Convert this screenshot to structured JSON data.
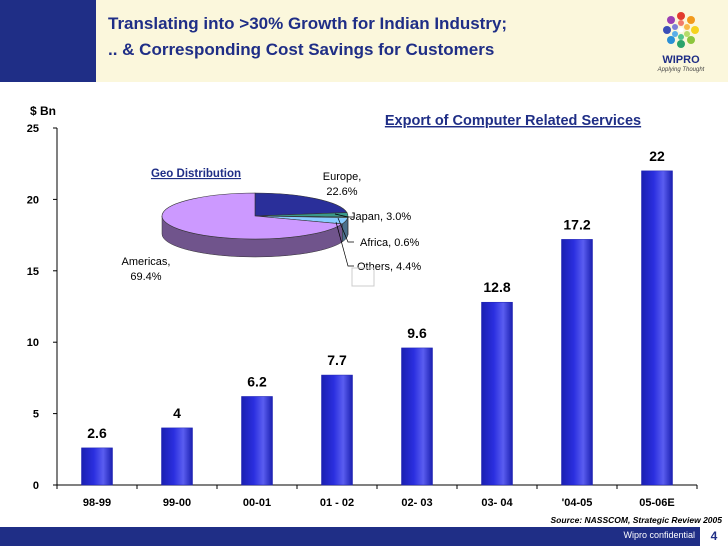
{
  "slide": {
    "title_line1": "Translating into >30% Growth for Indian Industry;",
    "title_line2": ".. & Corresponding Cost Savings for Customers",
    "logo_text": "WIPRO",
    "logo_tagline": "Applying Thought",
    "source": "Source: NASSCOM, Strategic Review 2005",
    "footer_label": "Wipro confidential",
    "page_number": "4"
  },
  "colors": {
    "brand_blue": "#1f2e86",
    "bar_blue": "#2b2fe0",
    "header_bg": "#fbf7dc",
    "pie_europe": "#2a2f9a",
    "pie_japan": "#3a9a8a",
    "pie_africa": "#ccffee",
    "pie_others": "#88ccff",
    "pie_americas": "#cc99ff"
  },
  "chart_data": [
    {
      "type": "bar",
      "title": "Export of Computer Related Services",
      "ylabel": "$ Bn",
      "xlabel": "",
      "categories": [
        "98-99",
        "99-00",
        "00-01",
        "01 - 02",
        "02- 03",
        "03- 04",
        "'04-05",
        "05-06E"
      ],
      "values": [
        2.6,
        4,
        6.2,
        7.7,
        9.6,
        12.8,
        17.2,
        22
      ],
      "value_labels": [
        "2.6",
        "4",
        "6.2",
        "7.7",
        "9.6",
        "12.8",
        "17.2",
        "22"
      ],
      "ylim": [
        0,
        25
      ],
      "yticks": [
        0,
        5,
        10,
        15,
        20,
        25
      ],
      "grid": false
    },
    {
      "type": "pie",
      "title": "Geo Distribution",
      "slices": [
        {
          "name": "Europe",
          "value": 22.6,
          "label": "Europe,\n22.6%"
        },
        {
          "name": "Japan",
          "value": 3.0,
          "label": "Japan, 3.0%"
        },
        {
          "name": "Africa",
          "value": 0.6,
          "label": "Africa, 0.6%"
        },
        {
          "name": "Others",
          "value": 4.4,
          "label": "Others, 4.4%"
        },
        {
          "name": "Americas",
          "value": 69.4,
          "label": "Americas,\n69.4%"
        }
      ]
    }
  ]
}
